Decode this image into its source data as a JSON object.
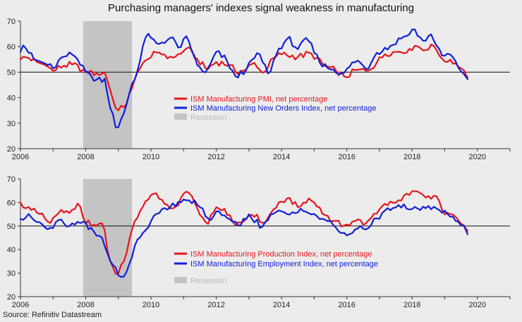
{
  "title": "Purchasing managers' indexes signal weakness in manufacturing",
  "source": "Source: Refinitiv Datastream",
  "colors": {
    "red": "#e8141c",
    "blue": "#1020d6",
    "recession": "#c4c4c4",
    "recession_text": "#b8b8b8",
    "background": "#ececec"
  },
  "chart_data": [
    {
      "type": "line",
      "xlim": [
        2006,
        2021
      ],
      "ylim": [
        20,
        70
      ],
      "x_ticks": [
        2006,
        2008,
        2010,
        2012,
        2014,
        2016,
        2018,
        2020
      ],
      "y_ticks": [
        20,
        30,
        40,
        50,
        60,
        70
      ],
      "reference_line": 50,
      "recession": {
        "start": 2007.92,
        "end": 2009.42,
        "label": "Recession"
      },
      "legend_placement": "center",
      "series": [
        {
          "name": "ISM Manufacturing PMI, net percentage",
          "color": "#e8141c",
          "anchors": [
            [
              2006.0,
              55.0
            ],
            [
              2006.2,
              56.0
            ],
            [
              2006.5,
              54.0
            ],
            [
              2006.8,
              52.5
            ],
            [
              2007.0,
              50.5
            ],
            [
              2007.3,
              52.5
            ],
            [
              2007.6,
              53.0
            ],
            [
              2007.9,
              51.0
            ],
            [
              2008.0,
              50.5
            ],
            [
              2008.3,
              49.5
            ],
            [
              2008.6,
              50.0
            ],
            [
              2008.75,
              43.0
            ],
            [
              2008.85,
              38.5
            ],
            [
              2009.0,
              35.0
            ],
            [
              2009.2,
              36.5
            ],
            [
              2009.4,
              43.0
            ],
            [
              2009.6,
              50.5
            ],
            [
              2009.9,
              55.0
            ],
            [
              2010.2,
              58.0
            ],
            [
              2010.6,
              56.0
            ],
            [
              2010.9,
              57.0
            ],
            [
              2011.1,
              59.5
            ],
            [
              2011.4,
              55.5
            ],
            [
              2011.7,
              51.0
            ],
            [
              2012.0,
              54.0
            ],
            [
              2012.4,
              53.0
            ],
            [
              2012.6,
              50.0
            ],
            [
              2012.9,
              51.0
            ],
            [
              2013.2,
              54.0
            ],
            [
              2013.4,
              49.5
            ],
            [
              2013.8,
              56.0
            ],
            [
              2014.0,
              57.0
            ],
            [
              2014.5,
              56.0
            ],
            [
              2014.9,
              57.5
            ],
            [
              2015.3,
              52.5
            ],
            [
              2015.7,
              50.5
            ],
            [
              2015.95,
              48.0
            ],
            [
              2016.3,
              51.0
            ],
            [
              2016.6,
              50.5
            ],
            [
              2016.9,
              53.5
            ],
            [
              2017.2,
              57.5
            ],
            [
              2017.6,
              58.0
            ],
            [
              2017.9,
              59.0
            ],
            [
              2018.1,
              60.5
            ],
            [
              2018.4,
              58.5
            ],
            [
              2018.7,
              60.5
            ],
            [
              2018.95,
              54.5
            ],
            [
              2019.2,
              55.0
            ],
            [
              2019.5,
              51.5
            ],
            [
              2019.7,
              48.0
            ]
          ]
        },
        {
          "name": "ISM Manufacturing New Orders Index, net percentage",
          "color": "#1020d6",
          "anchors": [
            [
              2006.0,
              58.0
            ],
            [
              2006.1,
              61.0
            ],
            [
              2006.4,
              55.0
            ],
            [
              2006.8,
              53.0
            ],
            [
              2007.0,
              51.5
            ],
            [
              2007.3,
              56.0
            ],
            [
              2007.6,
              57.0
            ],
            [
              2007.9,
              53.0
            ],
            [
              2008.0,
              50.0
            ],
            [
              2008.3,
              47.0
            ],
            [
              2008.6,
              47.5
            ],
            [
              2008.75,
              36.0
            ],
            [
              2008.85,
              33.0
            ],
            [
              2008.95,
              26.0
            ],
            [
              2009.2,
              35.0
            ],
            [
              2009.4,
              45.0
            ],
            [
              2009.6,
              51.0
            ],
            [
              2009.85,
              64.5
            ],
            [
              2010.2,
              61.0
            ],
            [
              2010.6,
              63.5
            ],
            [
              2010.9,
              59.5
            ],
            [
              2011.1,
              64.5
            ],
            [
              2011.4,
              53.0
            ],
            [
              2011.7,
              49.5
            ],
            [
              2012.0,
              58.0
            ],
            [
              2012.3,
              55.0
            ],
            [
              2012.6,
              48.0
            ],
            [
              2012.9,
              50.5
            ],
            [
              2013.3,
              58.0
            ],
            [
              2013.6,
              49.0
            ],
            [
              2013.9,
              59.0
            ],
            [
              2014.2,
              63.5
            ],
            [
              2014.5,
              59.0
            ],
            [
              2014.8,
              63.0
            ],
            [
              2015.2,
              53.0
            ],
            [
              2015.6,
              51.0
            ],
            [
              2015.9,
              49.5
            ],
            [
              2016.3,
              55.0
            ],
            [
              2016.6,
              51.0
            ],
            [
              2016.9,
              57.5
            ],
            [
              2017.3,
              60.0
            ],
            [
              2017.7,
              63.5
            ],
            [
              2017.95,
              65.0
            ],
            [
              2018.05,
              67.5
            ],
            [
              2018.3,
              62.0
            ],
            [
              2018.6,
              65.0
            ],
            [
              2018.9,
              56.5
            ],
            [
              2019.2,
              57.0
            ],
            [
              2019.4,
              52.0
            ],
            [
              2019.55,
              50.0
            ],
            [
              2019.7,
              47.2
            ]
          ]
        }
      ]
    },
    {
      "type": "line",
      "xlim": [
        2006,
        2021
      ],
      "ylim": [
        20,
        70
      ],
      "x_ticks": [
        2006,
        2008,
        2010,
        2012,
        2014,
        2016,
        2018,
        2020
      ],
      "y_ticks": [
        20,
        30,
        40,
        50,
        60,
        70
      ],
      "reference_line": 50,
      "recession": {
        "start": 2007.92,
        "end": 2009.42,
        "label": "Recession"
      },
      "legend_placement": "bottom-center",
      "series": [
        {
          "name": "ISM Manufacturing Production Index, net percentage",
          "color": "#e8141c",
          "anchors": [
            [
              2006.0,
              60.0
            ],
            [
              2006.3,
              57.0
            ],
            [
              2006.6,
              55.0
            ],
            [
              2006.9,
              51.0
            ],
            [
              2007.2,
              56.0
            ],
            [
              2007.5,
              55.5
            ],
            [
              2007.8,
              60.0
            ],
            [
              2007.95,
              52.0
            ],
            [
              2008.3,
              50.0
            ],
            [
              2008.55,
              51.5
            ],
            [
              2008.7,
              36.0
            ],
            [
              2008.85,
              32.0
            ],
            [
              2008.95,
              28.5
            ],
            [
              2009.2,
              36.0
            ],
            [
              2009.4,
              48.0
            ],
            [
              2009.6,
              54.0
            ],
            [
              2009.9,
              61.0
            ],
            [
              2010.1,
              64.0
            ],
            [
              2010.5,
              59.0
            ],
            [
              2010.8,
              58.0
            ],
            [
              2011.1,
              65.0
            ],
            [
              2011.4,
              58.0
            ],
            [
              2011.7,
              51.0
            ],
            [
              2012.0,
              58.0
            ],
            [
              2012.4,
              55.0
            ],
            [
              2012.6,
              50.0
            ],
            [
              2012.9,
              53.0
            ],
            [
              2013.2,
              54.0
            ],
            [
              2013.5,
              51.5
            ],
            [
              2013.9,
              60.0
            ],
            [
              2014.2,
              62.0
            ],
            [
              2014.5,
              58.0
            ],
            [
              2014.9,
              61.0
            ],
            [
              2015.3,
              55.0
            ],
            [
              2015.6,
              52.0
            ],
            [
              2015.95,
              50.0
            ],
            [
              2016.3,
              53.0
            ],
            [
              2016.6,
              51.0
            ],
            [
              2016.9,
              55.0
            ],
            [
              2017.2,
              60.0
            ],
            [
              2017.6,
              61.0
            ],
            [
              2017.9,
              63.0
            ],
            [
              2018.1,
              65.0
            ],
            [
              2018.4,
              62.0
            ],
            [
              2018.7,
              63.0
            ],
            [
              2018.95,
              56.0
            ],
            [
              2019.2,
              55.0
            ],
            [
              2019.5,
              51.0
            ],
            [
              2019.7,
              48.0
            ]
          ]
        },
        {
          "name": "ISM Manufacturing Employment Index, net percentage",
          "color": "#1020d6",
          "anchors": [
            [
              2006.0,
              53.0
            ],
            [
              2006.3,
              54.0
            ],
            [
              2006.6,
              51.5
            ],
            [
              2006.9,
              49.0
            ],
            [
              2007.2,
              53.0
            ],
            [
              2007.5,
              50.0
            ],
            [
              2007.8,
              51.0
            ],
            [
              2007.95,
              52.0
            ],
            [
              2008.3,
              46.0
            ],
            [
              2008.5,
              45.0
            ],
            [
              2008.7,
              37.0
            ],
            [
              2008.85,
              33.0
            ],
            [
              2009.0,
              29.0
            ],
            [
              2009.15,
              28.0
            ],
            [
              2009.4,
              36.0
            ],
            [
              2009.6,
              45.0
            ],
            [
              2009.9,
              49.0
            ],
            [
              2010.2,
              56.0
            ],
            [
              2010.6,
              58.0
            ],
            [
              2010.9,
              60.0
            ],
            [
              2011.2,
              61.0
            ],
            [
              2011.5,
              58.0
            ],
            [
              2011.8,
              52.0
            ],
            [
              2012.1,
              56.5
            ],
            [
              2012.4,
              53.0
            ],
            [
              2012.7,
              50.0
            ],
            [
              2013.0,
              55.0
            ],
            [
              2013.4,
              49.5
            ],
            [
              2013.8,
              56.0
            ],
            [
              2014.2,
              55.0
            ],
            [
              2014.6,
              57.5
            ],
            [
              2014.9,
              55.0
            ],
            [
              2015.3,
              53.0
            ],
            [
              2015.7,
              49.0
            ],
            [
              2016.0,
              46.0
            ],
            [
              2016.3,
              49.0
            ],
            [
              2016.6,
              48.5
            ],
            [
              2016.9,
              53.0
            ],
            [
              2017.2,
              57.0
            ],
            [
              2017.6,
              59.0
            ],
            [
              2017.9,
              57.0
            ],
            [
              2018.2,
              57.5
            ],
            [
              2018.5,
              58.5
            ],
            [
              2018.8,
              57.0
            ],
            [
              2019.1,
              55.0
            ],
            [
              2019.4,
              52.0
            ],
            [
              2019.6,
              50.0
            ],
            [
              2019.7,
              46.5
            ]
          ]
        }
      ]
    }
  ]
}
